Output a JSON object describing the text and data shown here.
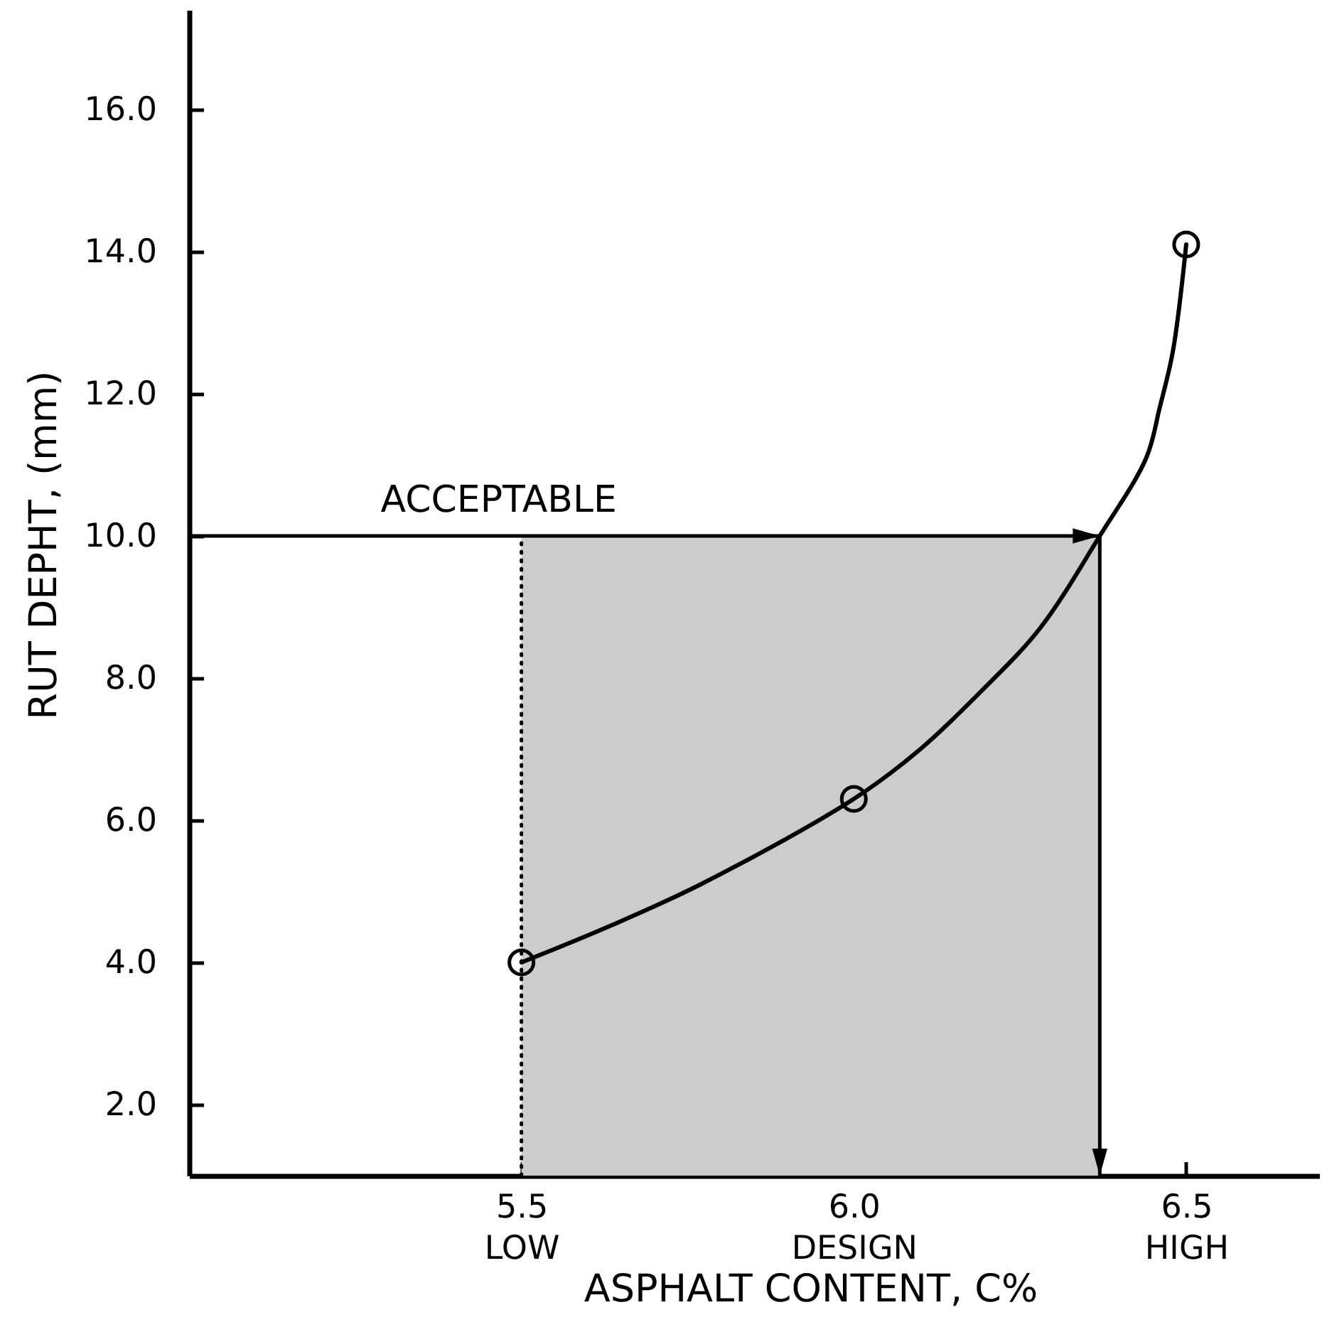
{
  "chart_data": {
    "type": "line",
    "xlabel": "ASPHALT CONTENT, C%",
    "ylabel": "RUT DEPHT, (mm)",
    "xlim": [
      5.0,
      6.7
    ],
    "ylim": [
      1.0,
      17.4
    ],
    "xticks": [
      {
        "value": 5.5,
        "label": "5.5\nLOW"
      },
      {
        "value": 6.0,
        "label": "6.0\nDESIGN"
      },
      {
        "value": 6.5,
        "label": "6.5\nHIGH"
      }
    ],
    "yticks": [
      {
        "value": 2,
        "label": "2.0"
      },
      {
        "value": 4,
        "label": "4.0"
      },
      {
        "value": 6,
        "label": "6.0"
      },
      {
        "value": 8,
        "label": "8.0"
      },
      {
        "value": 10,
        "label": "10.0"
      },
      {
        "value": 12,
        "label": "12.0"
      },
      {
        "value": 14,
        "label": "14.0"
      },
      {
        "value": 16,
        "label": "16.0"
      }
    ],
    "series": [
      {
        "color": "#000000",
        "x": [
          5.5,
          5.63,
          5.77,
          6.0,
          6.1,
          6.19,
          6.28,
          6.37,
          6.44,
          6.46,
          6.48,
          6.5
        ],
        "values": [
          4.0,
          4.5,
          5.1,
          6.3,
          7.0,
          7.8,
          8.7,
          10.0,
          11.1,
          11.8,
          12.6,
          14.1
        ]
      },
      {
        "type": "scatter",
        "color": "#000000",
        "marker": "circle",
        "x": [
          5.5,
          6.0,
          6.5
        ],
        "values": [
          4.0,
          6.3,
          14.1
        ]
      }
    ],
    "ref_lines": [
      {
        "axis": "y",
        "value": 10.0,
        "label": "ACCEPTABLE",
        "color": "#000000"
      },
      {
        "axis": "x",
        "value": 6.37,
        "color": "#000000"
      },
      {
        "axis": "x",
        "value": 5.5,
        "color": "#000000",
        "line_style": "dotted"
      }
    ],
    "bands": [
      {
        "axis": "x",
        "from": 5.5,
        "to": 6.37,
        "color": "#cccccc"
      }
    ],
    "grid": false
  }
}
